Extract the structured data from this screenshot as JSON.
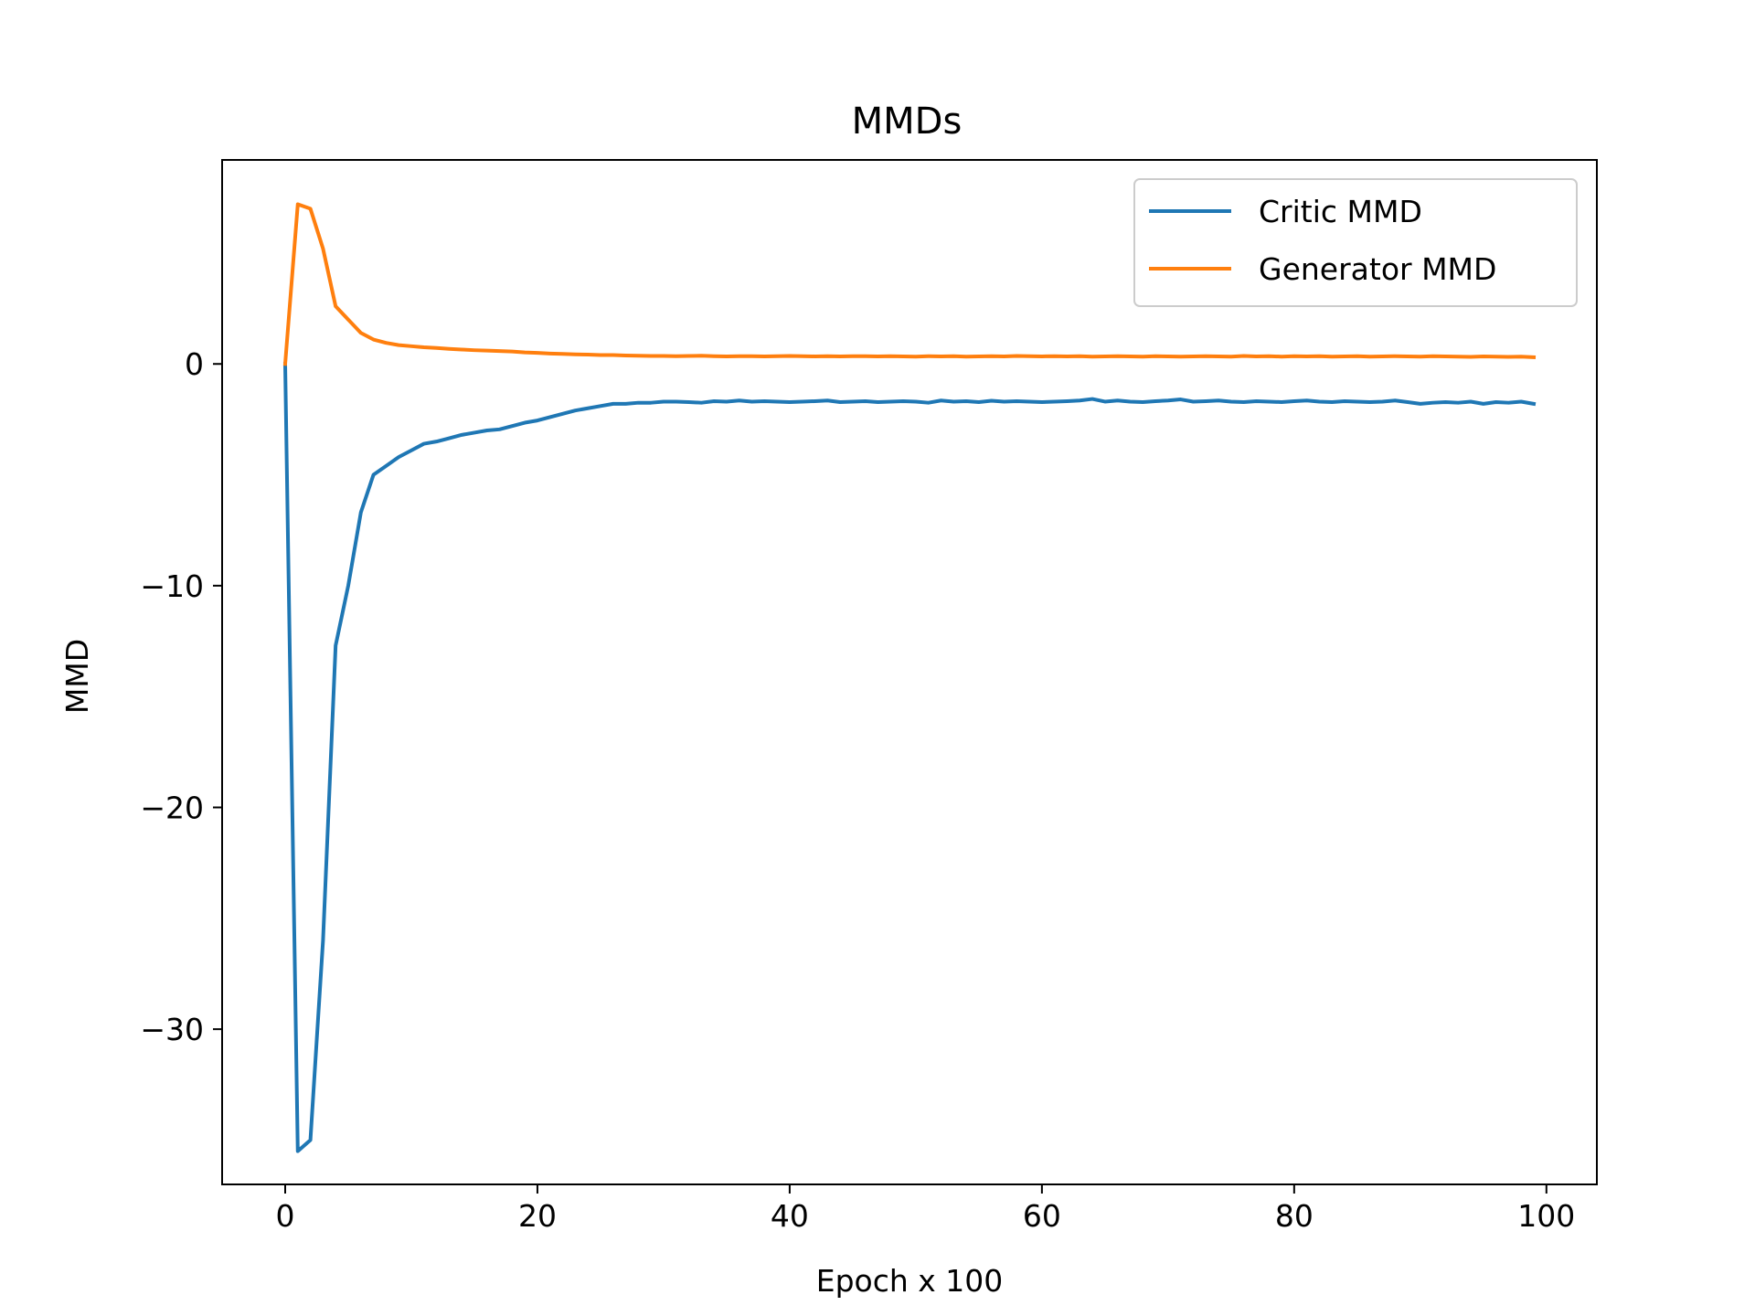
{
  "chart_data": {
    "type": "line",
    "title": "MMDs",
    "xlabel": "Epoch x 100",
    "ylabel": "MMD",
    "xlim": [
      -5,
      104
    ],
    "ylim": [
      -37,
      9.2
    ],
    "xticks": [
      0,
      20,
      40,
      60,
      80,
      100
    ],
    "yticks": [
      0,
      -10,
      -20,
      -30
    ],
    "xtick_labels": [
      "0",
      "20",
      "40",
      "60",
      "80",
      "100"
    ],
    "ytick_labels": [
      "0",
      "−10",
      "−20",
      "−30"
    ],
    "grid": false,
    "legend_position": "top-right",
    "series": [
      {
        "name": "Critic MMD",
        "color": "#1f77b4",
        "values": [
          0,
          -35.5,
          -35.0,
          -26.0,
          -12.7,
          -10.0,
          -6.7,
          -5.0,
          -4.6,
          -4.2,
          -3.9,
          -3.6,
          -3.5,
          -3.35,
          -3.2,
          -3.1,
          -3.0,
          -2.95,
          -2.8,
          -2.65,
          -2.55,
          -2.4,
          -2.25,
          -2.1,
          -2.0,
          -1.9,
          -1.8,
          -1.8,
          -1.75,
          -1.75,
          -1.7,
          -1.7,
          -1.72,
          -1.75,
          -1.68,
          -1.7,
          -1.65,
          -1.7,
          -1.68,
          -1.7,
          -1.72,
          -1.7,
          -1.68,
          -1.65,
          -1.72,
          -1.7,
          -1.68,
          -1.72,
          -1.7,
          -1.68,
          -1.7,
          -1.75,
          -1.65,
          -1.7,
          -1.68,
          -1.72,
          -1.66,
          -1.7,
          -1.68,
          -1.7,
          -1.72,
          -1.7,
          -1.68,
          -1.65,
          -1.58,
          -1.7,
          -1.65,
          -1.7,
          -1.72,
          -1.68,
          -1.65,
          -1.6,
          -1.7,
          -1.68,
          -1.65,
          -1.7,
          -1.72,
          -1.68,
          -1.7,
          -1.72,
          -1.68,
          -1.65,
          -1.7,
          -1.72,
          -1.68,
          -1.7,
          -1.72,
          -1.7,
          -1.65,
          -1.72,
          -1.8,
          -1.75,
          -1.72,
          -1.75,
          -1.7,
          -1.8,
          -1.72,
          -1.75,
          -1.7,
          -1.8
        ]
      },
      {
        "name": "Generator MMD",
        "color": "#ff7f0e",
        "values": [
          0,
          7.2,
          7.0,
          5.2,
          2.6,
          2.0,
          1.4,
          1.1,
          0.95,
          0.85,
          0.8,
          0.75,
          0.72,
          0.68,
          0.65,
          0.62,
          0.6,
          0.58,
          0.56,
          0.52,
          0.5,
          0.47,
          0.45,
          0.43,
          0.42,
          0.4,
          0.4,
          0.38,
          0.37,
          0.36,
          0.36,
          0.35,
          0.36,
          0.37,
          0.35,
          0.34,
          0.35,
          0.35,
          0.34,
          0.35,
          0.36,
          0.35,
          0.34,
          0.35,
          0.34,
          0.35,
          0.35,
          0.34,
          0.35,
          0.34,
          0.33,
          0.35,
          0.34,
          0.35,
          0.33,
          0.34,
          0.35,
          0.34,
          0.36,
          0.35,
          0.34,
          0.35,
          0.34,
          0.35,
          0.33,
          0.34,
          0.35,
          0.34,
          0.33,
          0.35,
          0.34,
          0.33,
          0.34,
          0.35,
          0.34,
          0.33,
          0.36,
          0.34,
          0.35,
          0.33,
          0.35,
          0.34,
          0.35,
          0.33,
          0.34,
          0.35,
          0.33,
          0.34,
          0.35,
          0.34,
          0.33,
          0.35,
          0.34,
          0.33,
          0.32,
          0.34,
          0.33,
          0.32,
          0.33,
          0.3
        ]
      }
    ]
  }
}
